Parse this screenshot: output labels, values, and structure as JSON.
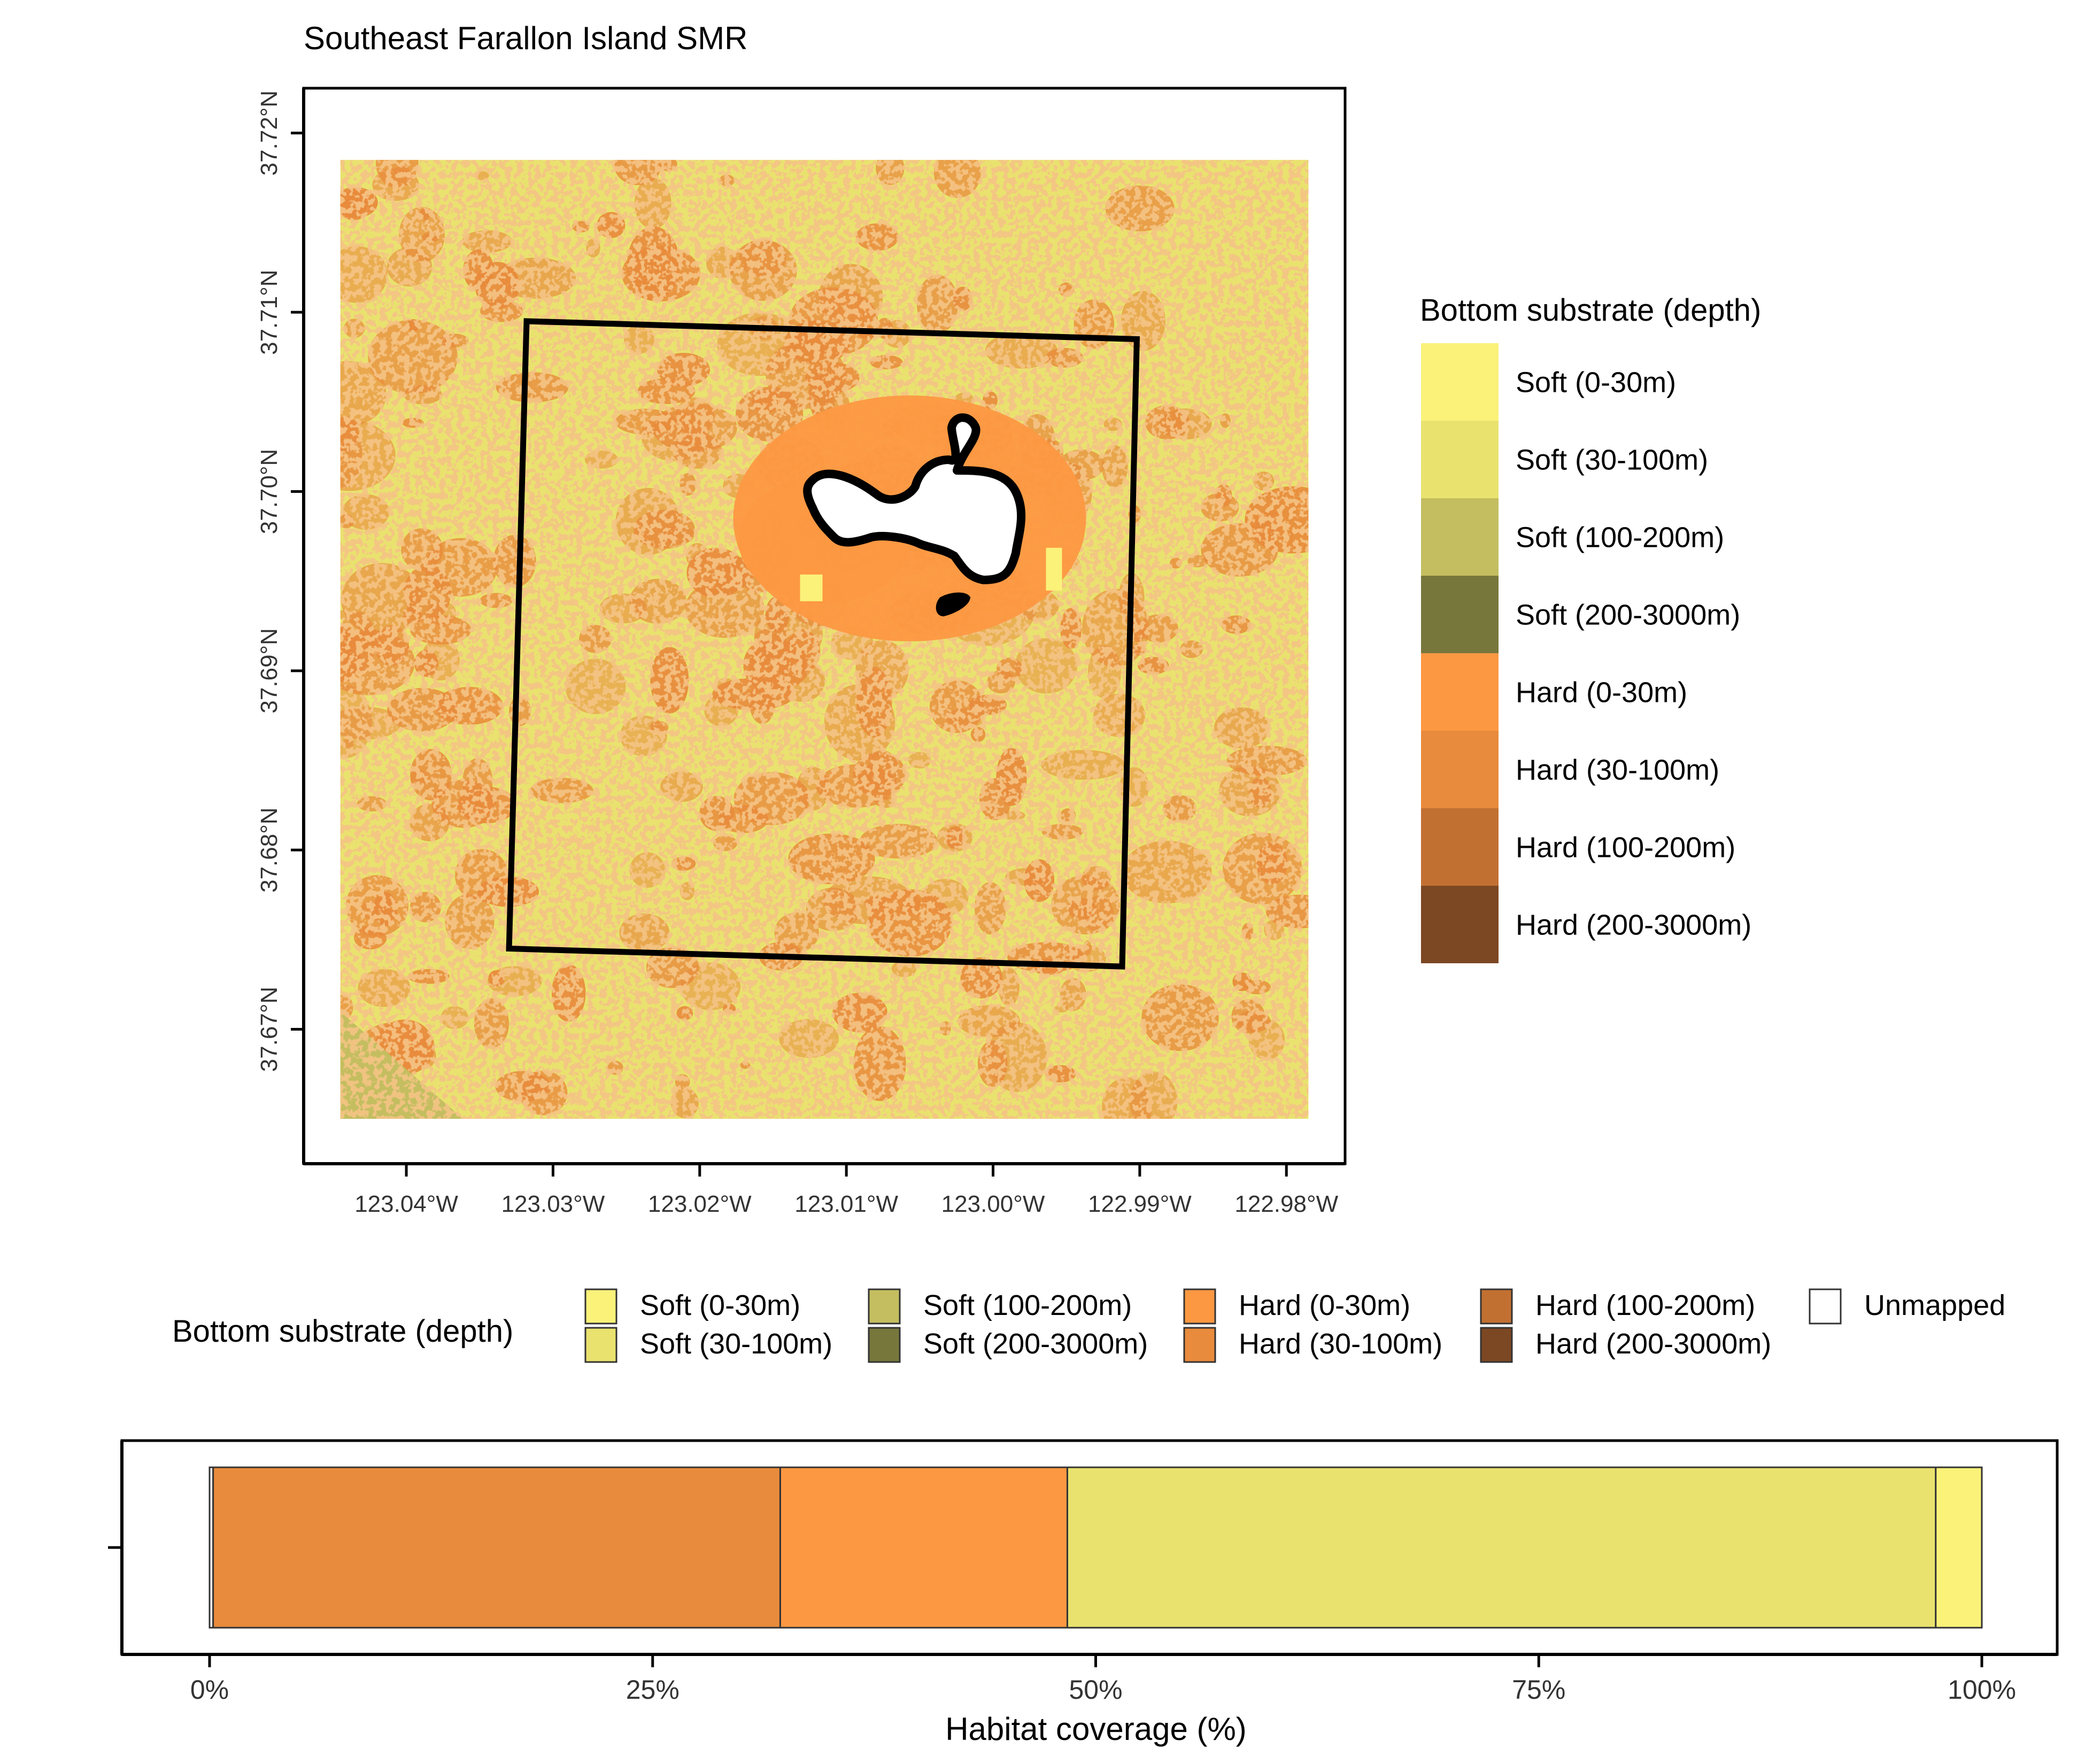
{
  "chart_data": [
    {
      "type": "map",
      "title": "Southeast Farallon Island SMR",
      "x_ticks": [
        "123.04°W",
        "123.03°W",
        "123.02°W",
        "123.01°W",
        "123.00°W",
        "122.99°W",
        "122.98°W"
      ],
      "y_ticks": [
        "37.67°N",
        "37.68°N",
        "37.69°N",
        "37.70°N",
        "37.71°N",
        "37.72°N"
      ],
      "xlim": [
        -123.047,
        -122.976
      ],
      "ylim": [
        37.6625,
        37.7225
      ],
      "raster_extent": {
        "lon": [
          -123.0445,
          -122.9785
        ],
        "lat": [
          37.665,
          37.7185
        ]
      },
      "reserve_boundary": [
        [
          -123.0318,
          37.7095
        ],
        [
          -122.9902,
          37.7085
        ],
        [
          -122.9912,
          37.6735
        ],
        [
          -123.033,
          37.6745
        ]
      ],
      "legend": {
        "title": "Bottom substrate (depth)",
        "entries": [
          "Soft (0-30m)",
          "Soft (30-100m)",
          "Soft (100-200m)",
          "Soft (200-3000m)",
          "Hard (0-30m)",
          "Hard (30-100m)",
          "Hard (100-200m)",
          "Hard (200-3000m)"
        ],
        "colors": [
          "#FBF27A",
          "#E9E26F",
          "#C4BE60",
          "#77773C",
          "#FD9842",
          "#E88B3C",
          "#C27032",
          "#7C4723"
        ]
      }
    },
    {
      "type": "bar",
      "orientation": "horizontal",
      "stacked": true,
      "xlabel": "Habitat coverage (%)",
      "x_ticks": [
        "0%",
        "25%",
        "50%",
        "75%",
        "100%"
      ],
      "xlim": [
        0,
        100
      ],
      "series": [
        {
          "name": "Unmapped",
          "values": [
            0.2
          ]
        },
        {
          "name": "Hard (30-100m)",
          "values": [
            32.0
          ]
        },
        {
          "name": "Hard (0-30m)",
          "values": [
            16.2
          ]
        },
        {
          "name": "Soft (30-100m)",
          "values": [
            49.0
          ]
        },
        {
          "name": "Soft (0-30m)",
          "values": [
            2.6
          ]
        }
      ],
      "legend": {
        "title": "Bottom substrate (depth)",
        "placement": "top",
        "entries": [
          "Soft (0-30m)",
          "Soft (30-100m)",
          "Soft (100-200m)",
          "Soft (200-3000m)",
          "Hard (0-30m)",
          "Hard (30-100m)",
          "Hard (100-200m)",
          "Hard (200-3000m)",
          "Unmapped"
        ],
        "colors": [
          "#FBF27A",
          "#E9E26F",
          "#C4BE60",
          "#77773C",
          "#FD9842",
          "#E88B3C",
          "#C27032",
          "#7C4723",
          "#FFFFFF"
        ]
      }
    }
  ]
}
